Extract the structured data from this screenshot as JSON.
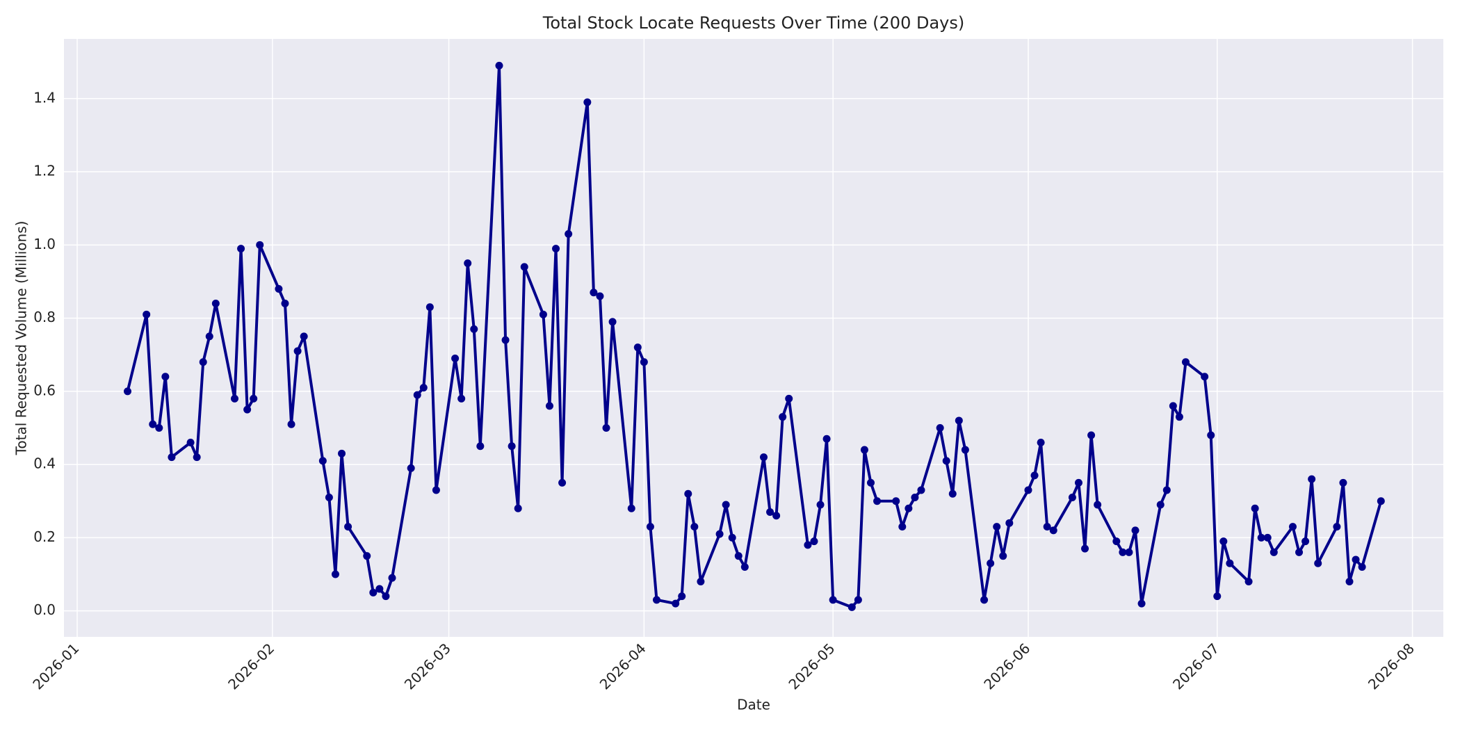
{
  "chart_data": {
    "type": "line",
    "title": "Total Stock Locate Requests Over Time (200 Days)",
    "xlabel": "Date",
    "ylabel": "Total Requested Volume (Millions)",
    "color": "#00008b",
    "grid": true,
    "xlim": [
      -2.1,
      216.9
    ],
    "xticks": [
      {
        "value": 0,
        "label": "2026-01"
      },
      {
        "value": 31,
        "label": "2026-02"
      },
      {
        "value": 59,
        "label": "2026-03"
      },
      {
        "value": 90,
        "label": "2026-04"
      },
      {
        "value": 120,
        "label": "2026-05"
      },
      {
        "value": 151,
        "label": "2026-06"
      },
      {
        "value": 181,
        "label": "2026-07"
      },
      {
        "value": 212,
        "label": "2026-08"
      }
    ],
    "ylim": [
      -0.071,
      1.563
    ],
    "yticks": [
      {
        "value": 0,
        "label": "0.0"
      },
      0.2,
      0.4,
      0.6,
      0.8,
      {
        "value": 1,
        "label": "1.0"
      },
      1.2,
      1.4
    ],
    "x": [
      8,
      11,
      12,
      13,
      14,
      15,
      18,
      19,
      20,
      21,
      22,
      25,
      26,
      27,
      28,
      29,
      32,
      33,
      34,
      35,
      36,
      39,
      40,
      41,
      42,
      43,
      46,
      47,
      48,
      49,
      50,
      53,
      54,
      55,
      56,
      57,
      60,
      61,
      62,
      63,
      64,
      67,
      68,
      69,
      70,
      71,
      74,
      75,
      76,
      77,
      78,
      81,
      82,
      83,
      84,
      85,
      88,
      89,
      90,
      91,
      92,
      95,
      96,
      97,
      98,
      99,
      102,
      103,
      104,
      105,
      106,
      109,
      110,
      111,
      112,
      113,
      116,
      117,
      118,
      119,
      120,
      123,
      124,
      125,
      126,
      127,
      130,
      131,
      132,
      133,
      134,
      137,
      138,
      139,
      140,
      141,
      144,
      145,
      146,
      147,
      148,
      151,
      152,
      153,
      154,
      155,
      158,
      159,
      160,
      161,
      162,
      165,
      166,
      167,
      168,
      169,
      172,
      173,
      174,
      175,
      176,
      179,
      180,
      181,
      182,
      183,
      186,
      187,
      188,
      189,
      190,
      193,
      194,
      195,
      196,
      197,
      200,
      201,
      202,
      203,
      204,
      207
    ],
    "values": [
      0.6,
      0.81,
      0.51,
      0.5,
      0.64,
      0.42,
      0.46,
      0.42,
      0.68,
      0.75,
      0.84,
      0.58,
      0.99,
      0.55,
      0.58,
      1.0,
      0.88,
      0.84,
      0.51,
      0.71,
      0.75,
      0.41,
      0.31,
      0.1,
      0.43,
      0.23,
      0.15,
      0.05,
      0.06,
      0.04,
      0.09,
      0.39,
      0.59,
      0.61,
      0.83,
      0.33,
      0.69,
      0.58,
      0.95,
      0.77,
      0.45,
      1.49,
      0.74,
      0.45,
      0.28,
      0.94,
      0.81,
      0.56,
      0.99,
      0.35,
      1.03,
      1.39,
      0.87,
      0.86,
      0.5,
      0.79,
      0.28,
      0.72,
      0.68,
      0.23,
      0.03,
      0.02,
      0.04,
      0.32,
      0.23,
      0.08,
      0.21,
      0.29,
      0.2,
      0.15,
      0.12,
      0.42,
      0.27,
      0.26,
      0.53,
      0.58,
      0.18,
      0.19,
      0.29,
      0.47,
      0.03,
      0.01,
      0.03,
      0.44,
      0.35,
      0.3,
      0.3,
      0.23,
      0.28,
      0.31,
      0.33,
      0.5,
      0.41,
      0.32,
      0.52,
      0.44,
      0.03,
      0.13,
      0.23,
      0.15,
      0.24,
      0.33,
      0.37,
      0.46,
      0.23,
      0.22,
      0.31,
      0.35,
      0.17,
      0.48,
      0.29,
      0.19,
      0.16,
      0.16,
      0.22,
      0.02,
      0.29,
      0.33,
      0.56,
      0.53,
      0.68,
      0.64,
      0.48,
      0.04,
      0.19,
      0.13,
      0.08,
      0.28,
      0.2,
      0.2,
      0.16,
      0.23,
      0.16,
      0.19,
      0.36,
      0.13,
      0.23,
      0.35,
      0.08,
      0.14,
      0.12,
      0.3
    ]
  }
}
